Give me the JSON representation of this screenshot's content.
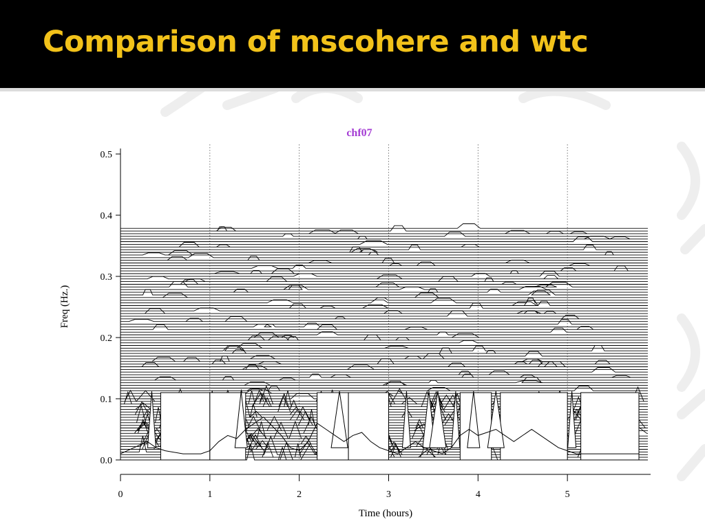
{
  "slide": {
    "title": "Comparison of mscohere and wtc"
  },
  "colors": {
    "header_bg": "#000000",
    "title_text": "#f2c21a",
    "chart_title": "#a43cd4",
    "trace": "#000000",
    "decoration": "#eeeeee"
  },
  "chart_data": {
    "type": "line",
    "title": "chf07",
    "xlabel": "Time (hours)",
    "ylabel": "Freq (Hz.)",
    "xlim": [
      0,
      5.9
    ],
    "ylim": [
      0,
      0.5
    ],
    "xticks": [
      0,
      1,
      2,
      3,
      4,
      5
    ],
    "xtick_labels": [
      "0",
      "1",
      "2",
      "3",
      "4",
      "5"
    ],
    "yticks": [
      0,
      0.1,
      0.2,
      0.3,
      0.4,
      0.5
    ],
    "ytick_labels": [
      "0.0",
      "0.1",
      "0.2",
      "0.3",
      "0.4",
      "0.5"
    ],
    "grid": "vertical dotted at integer hours",
    "stacked_trace_count": 88,
    "trace_frequency_spacing_hz": 0.00435,
    "trace_deflection_above_0_1_hz": 0.006,
    "coherence_cap_hz": 0.11,
    "high_coherence_time_blocks_hours": [
      [
        0.45,
        1.0
      ],
      [
        1.0,
        1.4
      ],
      [
        2.2,
        2.55
      ],
      [
        2.55,
        3.0
      ],
      [
        3.8,
        4.15
      ],
      [
        4.25,
        5.0
      ],
      [
        5.15,
        5.8
      ]
    ],
    "spike_times_hours": [
      0.35,
      1.35,
      2.45,
      3.2,
      3.45,
      3.55,
      3.75,
      3.95,
      4.2,
      5.05
    ],
    "lower_outline_series": [
      {
        "x": [
          0.0,
          0.15,
          0.3,
          0.4,
          0.5,
          0.7,
          0.9,
          1.0,
          1.1,
          1.2,
          1.3,
          1.4,
          1.5,
          1.6,
          1.7,
          1.8,
          1.9,
          2.0,
          2.1,
          2.2,
          2.3,
          2.4,
          2.5,
          2.6,
          2.7,
          2.8,
          2.9,
          3.0,
          3.1,
          3.2,
          3.3,
          3.4,
          3.5,
          3.6,
          3.7,
          3.8,
          3.9,
          4.0,
          4.1,
          4.2,
          4.3,
          4.4,
          4.5,
          4.6,
          4.7,
          4.8,
          4.9,
          5.0,
          5.1,
          5.2,
          5.4,
          5.6,
          5.8
        ],
        "y": [
          0.01,
          0.02,
          0.03,
          0.02,
          0.015,
          0.01,
          0.01,
          0.015,
          0.03,
          0.04,
          0.035,
          0.05,
          0.06,
          0.07,
          0.055,
          0.04,
          0.02,
          0.015,
          0.03,
          0.06,
          0.05,
          0.04,
          0.03,
          0.04,
          0.045,
          0.03,
          0.02,
          0.015,
          0.01,
          0.02,
          0.03,
          0.02,
          0.015,
          0.01,
          0.02,
          0.04,
          0.05,
          0.04,
          0.045,
          0.05,
          0.04,
          0.03,
          0.04,
          0.05,
          0.04,
          0.03,
          0.02,
          0.015,
          0.01,
          0.01,
          0.01,
          0.01,
          0.01
        ]
      }
    ]
  }
}
